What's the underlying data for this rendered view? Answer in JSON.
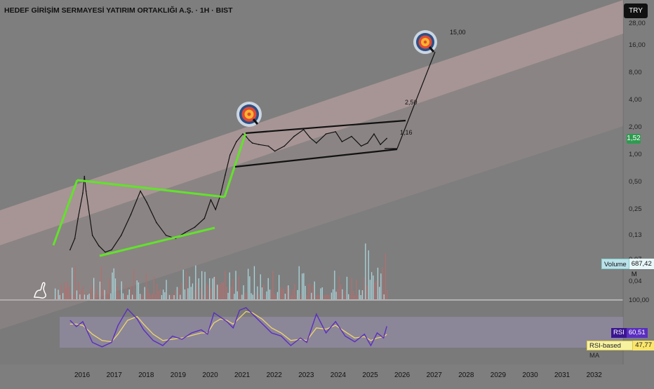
{
  "header": {
    "title": "HEDEF GİRİŞİM SERMAYESİ YATIRIM ORTAKLIĞI A.Ş. · 1H · BIST",
    "currency_button": "TRY"
  },
  "price_axis": {
    "labels": [
      "28,00",
      "16,00",
      "8,00",
      "4,00",
      "2,00",
      "1,00",
      "0,50",
      "0,25",
      "0,13",
      "0,07",
      "0,04"
    ],
    "scale": "log"
  },
  "time_axis": {
    "labels": [
      "2016",
      "2017",
      "2018",
      "2019",
      "2020",
      "2021",
      "2022",
      "2023",
      "2024",
      "2025",
      "2026",
      "2027",
      "2028",
      "2029",
      "2030",
      "2031",
      "2032"
    ]
  },
  "badges": {
    "last_price": "1,52",
    "volume_label": "Volume",
    "volume_value": "687,42 M",
    "rsi_label": "RSI",
    "rsi_value": "60,51",
    "rsi_ma_label": "RSI-based MA",
    "rsi_ma_value": "47,77",
    "rsi_top_label": "100,00"
  },
  "annotations": {
    "target_1": "15,00",
    "target_2": "2,50",
    "target_3": "1,16"
  },
  "colors": {
    "background": "#7e7e7e",
    "channel": "#c9a8a8",
    "green_lines": "#62e22c",
    "price_line": "#111111",
    "volume_up": "#a9d6dc",
    "volume_down": "#b07070",
    "rsi_line": "#5a2ec0",
    "rsi_ma_line": "#f0d76a",
    "rsi_band": "#9a8fb3"
  },
  "chart_data": {
    "type": "line",
    "title": "HEDEF GİRİŞİM SERMAYESİ YATIRIM ORTAKLIĞI A.Ş. · 1H · BIST",
    "xlabel": "",
    "ylabel": "",
    "y_scale": "log",
    "ylim": [
      0.035,
      30
    ],
    "xlim": [
      2015.5,
      2032.3
    ],
    "series": [
      {
        "name": "",
        "x": [
          2015.6,
          2015.75,
          2015.85,
          2016.0,
          2016.05,
          2016.1,
          2016.3,
          2016.5,
          2016.7,
          2016.9,
          2017.2,
          2017.5,
          2017.8,
          2018.0,
          2018.3,
          2018.6,
          2018.9,
          2019.2,
          2019.5,
          2019.8,
          2020.0,
          2020.15,
          2020.3,
          2020.45,
          2020.6,
          2020.8,
          2021.0,
          2021.1,
          2021.2,
          2021.3,
          2021.5,
          2021.8,
          2022.0,
          2022.3,
          2022.6,
          2022.9,
          2023.1,
          2023.3,
          2023.6,
          2023.9,
          2024.1,
          2024.4,
          2024.7,
          2024.9,
          2025.1,
          2025.3,
          2025.5
        ],
        "values": [
          0.09,
          0.12,
          0.2,
          0.38,
          0.58,
          0.4,
          0.13,
          0.1,
          0.085,
          0.09,
          0.13,
          0.22,
          0.4,
          0.3,
          0.18,
          0.13,
          0.12,
          0.14,
          0.16,
          0.2,
          0.32,
          0.25,
          0.36,
          0.6,
          1.0,
          1.4,
          1.7,
          1.6,
          1.45,
          1.35,
          1.3,
          1.25,
          1.1,
          1.25,
          1.6,
          1.9,
          1.55,
          1.35,
          1.7,
          1.8,
          1.4,
          1.6,
          1.25,
          1.35,
          1.7,
          1.3,
          1.52
        ]
      }
    ],
    "rsi": {
      "x": [
        2015.6,
        2015.8,
        2016.0,
        2016.3,
        2016.6,
        2016.9,
        2017.1,
        2017.4,
        2017.7,
        2017.9,
        2018.2,
        2018.5,
        2018.8,
        2019.1,
        2019.4,
        2019.7,
        2019.9,
        2020.1,
        2020.3,
        2020.5,
        2020.7,
        2020.9,
        2021.1,
        2021.3,
        2021.6,
        2021.9,
        2022.2,
        2022.5,
        2022.8,
        2023.0,
        2023.3,
        2023.6,
        2023.9,
        2024.2,
        2024.5,
        2024.8,
        2025.0,
        2025.2,
        2025.4,
        2025.5
      ],
      "values": [
        70,
        60,
        68,
        35,
        28,
        35,
        62,
        88,
        72,
        55,
        38,
        30,
        45,
        40,
        50,
        55,
        48,
        82,
        75,
        68,
        58,
        86,
        90,
        80,
        65,
        50,
        45,
        30,
        42,
        35,
        80,
        50,
        68,
        45,
        36,
        48,
        30,
        50,
        42,
        60.51
      ],
      "ma_values": [
        64,
        64,
        62,
        48,
        38,
        36,
        48,
        70,
        76,
        64,
        48,
        38,
        40,
        42,
        46,
        50,
        50,
        66,
        72,
        70,
        64,
        74,
        84,
        82,
        72,
        58,
        50,
        38,
        40,
        38,
        58,
        56,
        62,
        52,
        42,
        44,
        38,
        42,
        44,
        47.77
      ]
    },
    "targets": [
      {
        "label": "15,00",
        "value": 15.0
      },
      {
        "label": "2,50",
        "value": 2.5
      },
      {
        "label": "1,16",
        "value": 1.16
      }
    ]
  }
}
